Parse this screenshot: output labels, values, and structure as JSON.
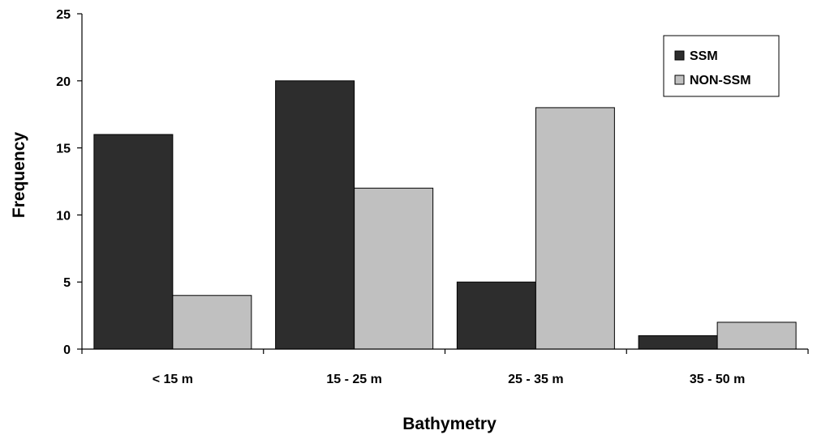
{
  "chart_data": {
    "type": "bar",
    "title": "",
    "xlabel": "Bathymetry",
    "ylabel": "Frequency",
    "categories": [
      "< 15 m",
      "15 - 25 m",
      "25 - 35 m",
      "35 - 50 m"
    ],
    "series": [
      {
        "name": "SSM",
        "values": [
          16,
          20,
          5,
          1
        ],
        "color": "#2d2d2d"
      },
      {
        "name": "NON-SSM",
        "values": [
          4,
          12,
          18,
          2
        ],
        "color": "#c0c0c0"
      }
    ],
    "ylim": [
      0,
      25
    ],
    "yticks": [
      0,
      5,
      10,
      15,
      20,
      25
    ],
    "grid": false,
    "legend_position": "top-right"
  }
}
